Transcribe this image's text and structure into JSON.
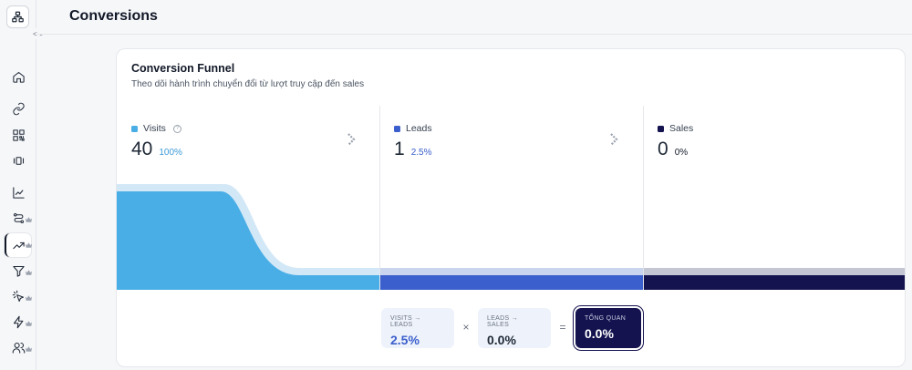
{
  "header": {
    "title": "Conversions"
  },
  "sidebar": {
    "items": [
      {
        "icon": "home-icon"
      },
      {
        "icon": "link-icon"
      },
      {
        "icon": "qr-code-icon"
      },
      {
        "icon": "nfc-icon"
      },
      {
        "icon": "analytics-icon"
      },
      {
        "icon": "routes-icon",
        "premium": true
      },
      {
        "icon": "conversions-icon",
        "premium": true,
        "active": true
      },
      {
        "icon": "filter-icon",
        "premium": true
      },
      {
        "icon": "pointer-icon",
        "premium": true
      },
      {
        "icon": "bolt-icon",
        "premium": true
      },
      {
        "icon": "users-icon",
        "premium": true
      }
    ]
  },
  "card": {
    "title": "Conversion Funnel",
    "subtitle": "Theo dõi hành trình chuyển đổi từ lượt truy cập đến sales"
  },
  "stages": [
    {
      "label": "Visits",
      "value": "40",
      "percent": "100%",
      "color": "#4aaee6",
      "percent_color": "#3d9ad6"
    },
    {
      "label": "Leads",
      "value": "1",
      "percent": "2.5%",
      "color": "#3b5fcc",
      "percent_color": "#3b5fcc"
    },
    {
      "label": "Sales",
      "value": "0",
      "percent": "0%",
      "color": "#14134f",
      "percent_color": "#111827"
    }
  ],
  "summary": {
    "visits_leads": {
      "label": "VISITS → LEADS",
      "value": "2.5%"
    },
    "leads_sales": {
      "label": "LEADS → SALES",
      "value": "0.0%"
    },
    "total": {
      "label": "TỔNG QUAN",
      "value": "0.0%"
    },
    "multiply": "×",
    "equals": "="
  },
  "colors": {
    "visits": "#4aaee6",
    "visits_light": "#d3e8f7",
    "leads": "#3b5fcc",
    "leads_light": "#c9d4ef",
    "sales": "#14134f",
    "sales_light": "#c4c6d4",
    "total_bg": "#14134f"
  }
}
